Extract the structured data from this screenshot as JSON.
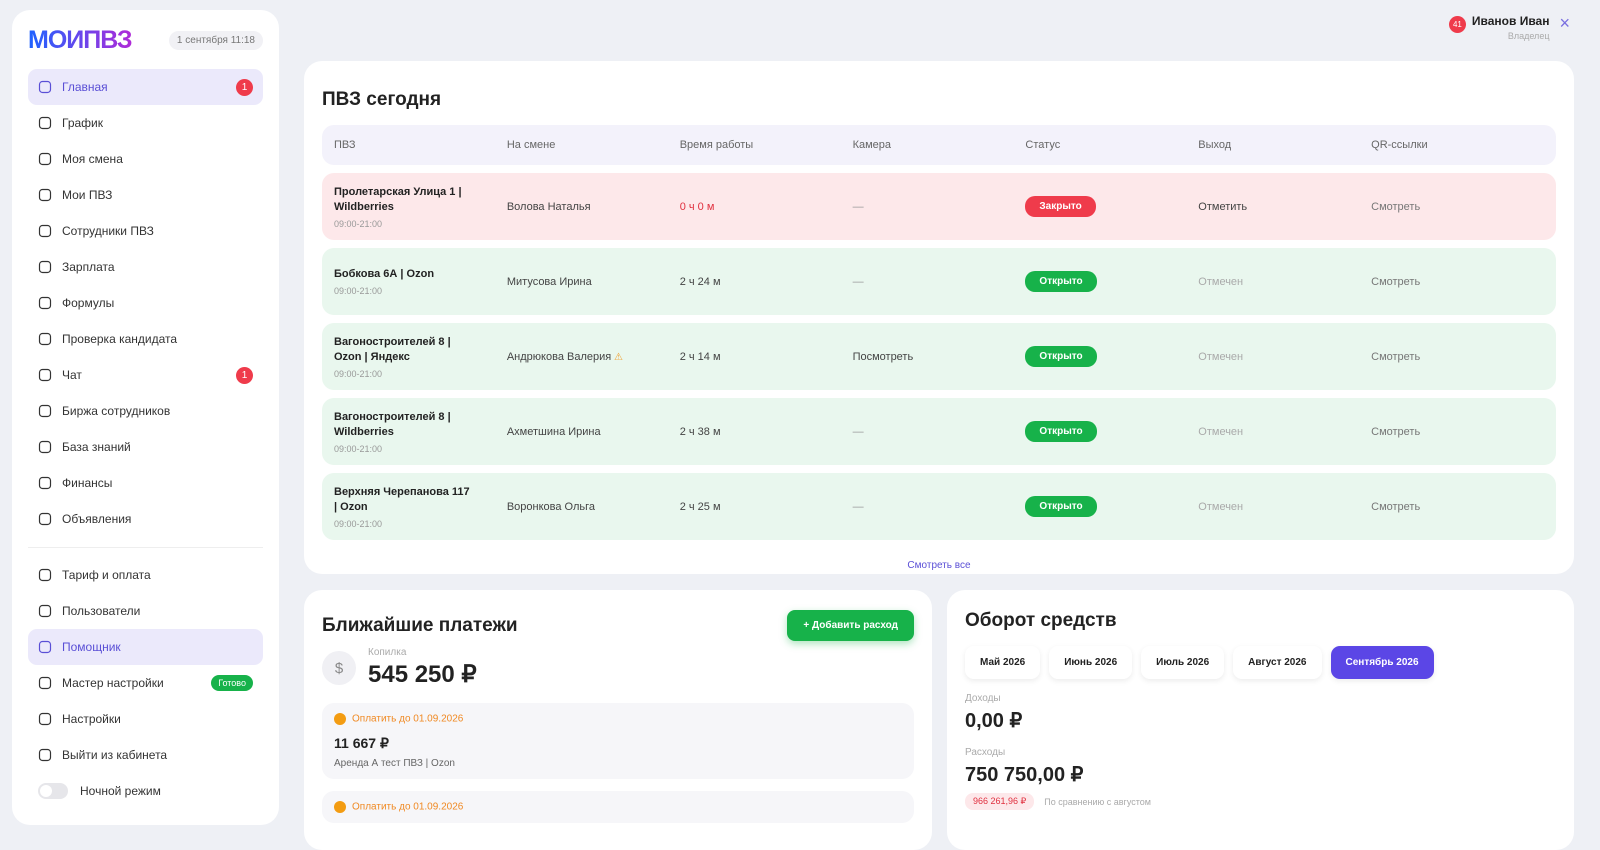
{
  "sidebar": {
    "logo": "МОИПВЗ",
    "datetime": "1 сентября 11:18",
    "menu": [
      {
        "label": "Главная",
        "badge": "1"
      },
      {
        "label": "График"
      },
      {
        "label": "Моя смена"
      },
      {
        "label": "Мои ПВЗ"
      },
      {
        "label": "Сотрудники ПВЗ"
      },
      {
        "label": "Зарплата"
      },
      {
        "label": "Формулы"
      },
      {
        "label": "Проверка кандидата"
      },
      {
        "label": "Чат",
        "badge": "1"
      },
      {
        "label": "Биржа сотрудников"
      },
      {
        "label": "База знаний"
      },
      {
        "label": "Финансы"
      },
      {
        "label": "Объявления"
      }
    ],
    "menu2": [
      {
        "label": "Тариф и оплата"
      },
      {
        "label": "Пользователи"
      },
      {
        "label": "Помощник"
      },
      {
        "label": "Мастер настройки",
        "tag": "Готово"
      },
      {
        "label": "Настройки"
      },
      {
        "label": "Выйти из кабинета"
      }
    ],
    "night_mode": "Ночной режим"
  },
  "user": {
    "badge": "41",
    "name": "Иванов Иван",
    "role": "Владелец"
  },
  "today": {
    "title": "ПВЗ сегодня",
    "columns": [
      "ПВЗ",
      "На смене",
      "Время работы",
      "Камера",
      "Статус",
      "Выход",
      "QR-ссылки"
    ],
    "rows": [
      {
        "name": "Пролетарская Улица 1 | Wildberries",
        "hours": "09:00-21:00",
        "staff": "Волова Наталья",
        "work_time": "0 ч 0 м",
        "camera": "—",
        "status": "Закрыто",
        "exit": "Отметить",
        "qr": "Смотреть"
      },
      {
        "name": "Бобкова 6А | Ozon",
        "hours": "09:00-21:00",
        "staff": "Митусова Ирина",
        "work_time": "2 ч 24 м",
        "camera": "—",
        "status": "Открыто",
        "exit": "Отмечен",
        "qr": "Смотреть"
      },
      {
        "name": "Вагоностроителей 8 | Ozon | Яндекс",
        "hours": "09:00-21:00",
        "staff": "Андрюкова Валерия",
        "work_time": "2 ч 14 м",
        "camera": "Посмотреть",
        "status": "Открыто",
        "exit": "Отмечен",
        "qr": "Смотреть"
      },
      {
        "name": "Вагоностроителей 8 | Wildberries",
        "hours": "09:00-21:00",
        "staff": "Ахметшина Ирина",
        "work_time": "2 ч 38 м",
        "camera": "—",
        "status": "Открыто",
        "exit": "Отмечен",
        "qr": "Смотреть"
      },
      {
        "name": "Верхняя Черепанова 117 | Ozon",
        "hours": "09:00-21:00",
        "staff": "Воронкова Ольга",
        "work_time": "2 ч 25 м",
        "camera": "—",
        "status": "Открыто",
        "exit": "Отмечен",
        "qr": "Смотреть"
      }
    ],
    "view_all": "Смотреть все"
  },
  "payments": {
    "title": "Ближайшие платежи",
    "add_button": "+ Добавить расход",
    "piggy_label": "Копилка",
    "piggy_amount": "545 250 ₽",
    "items": [
      {
        "due": "Оплатить до 01.09.2026",
        "amount": "11 667 ₽",
        "desc": "Аренда А тест ПВЗ | Ozon"
      },
      {
        "due": "Оплатить до 01.09.2026"
      }
    ]
  },
  "turnover": {
    "title": "Оборот средств",
    "months": [
      {
        "label": "Май 2026"
      },
      {
        "label": "Июнь 2026"
      },
      {
        "label": "Июль 2026"
      },
      {
        "label": "Август 2026"
      },
      {
        "label": "Сентябрь 2026",
        "active": true
      }
    ],
    "income_label": "Доходы",
    "income": "0,00 ₽",
    "expense_label": "Расходы",
    "expense": "750 750,00 ₽",
    "change": "966 261,96 ₽",
    "change_note": "По сравнению с августом"
  }
}
